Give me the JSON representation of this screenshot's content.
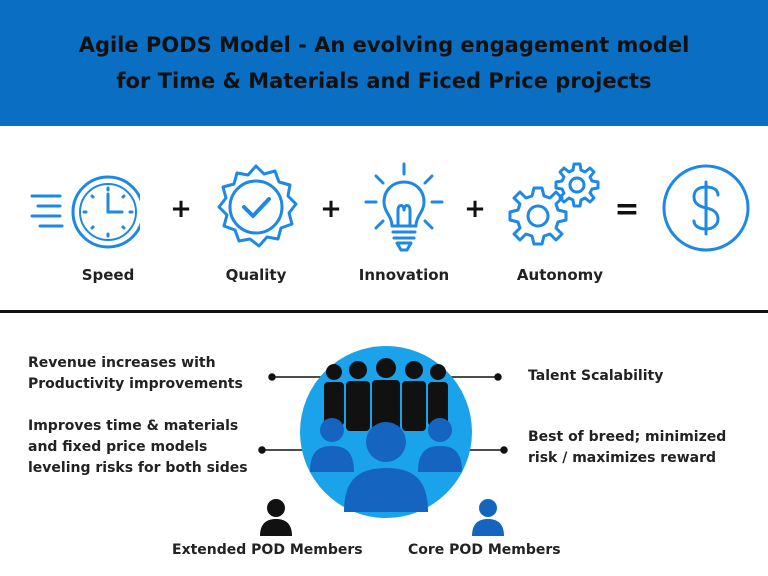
{
  "header": {
    "title_line1": "Agile PODS Model - An evolving engagement model",
    "title_line2": "for Time & Materials and Ficed Price projects"
  },
  "equation": {
    "terms": [
      {
        "label": "Speed",
        "icon": "stopwatch-icon"
      },
      {
        "label": "Quality",
        "icon": "quality-badge-icon"
      },
      {
        "label": "Innovation",
        "icon": "lightbulb-icon"
      },
      {
        "label": "Autonomy",
        "icon": "gears-icon"
      }
    ],
    "plus": "+",
    "equals": "=",
    "result_icon": "dollar-icon"
  },
  "benefits": {
    "left_top": "Revenue increases with\nProductivity improvements",
    "left_bottom": "Improves time & materials\nand fixed price models\nleveling risks for both sides",
    "right_top": "Talent Scalability",
    "right_bottom": "Best of breed; minimized\nrisk / maximizes reward"
  },
  "legend": {
    "extended": "Extended POD Members",
    "core": "Core POD Members"
  },
  "colors": {
    "header_bg": "#0a6fc2",
    "icon_blue": "#1e88e5",
    "circle_bg": "#1aa3ea",
    "core_member": "#1565c0",
    "extended_member": "#111111"
  }
}
